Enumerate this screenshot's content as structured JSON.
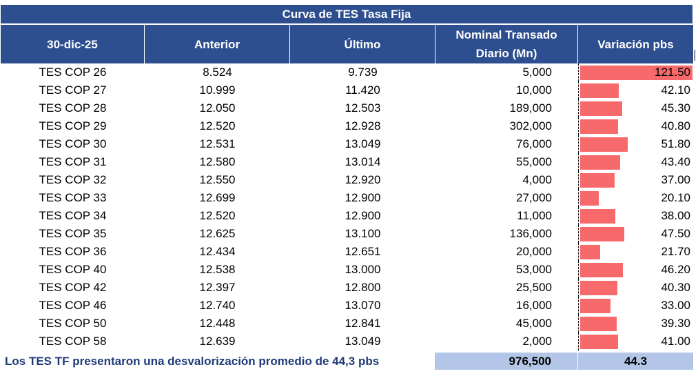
{
  "title": "Curva de TES Tasa Fija",
  "headers": {
    "date": "30-dic-25",
    "prev": "Anterior",
    "last": "Último",
    "nominal_line1": "Nominal Transado",
    "nominal_line2": "Diario (Mn)",
    "variation": "Variación pbs"
  },
  "rows": [
    {
      "name": "TES COP 26",
      "prev": "8.524",
      "last": "9.739",
      "nominal": "5,000",
      "var": "121.50",
      "var_value": 121.5
    },
    {
      "name": "TES COP 27",
      "prev": "10.999",
      "last": "11.420",
      "nominal": "10,000",
      "var": "42.10",
      "var_value": 42.1
    },
    {
      "name": "TES COP 28",
      "prev": "12.050",
      "last": "12.503",
      "nominal": "189,000",
      "var": "45.30",
      "var_value": 45.3
    },
    {
      "name": "TES COP 29",
      "prev": "12.520",
      "last": "12.928",
      "nominal": "302,000",
      "var": "40.80",
      "var_value": 40.8
    },
    {
      "name": "TES COP 30",
      "prev": "12.531",
      "last": "13.049",
      "nominal": "76,000",
      "var": "51.80",
      "var_value": 51.8
    },
    {
      "name": "TES COP 31",
      "prev": "12.580",
      "last": "13.014",
      "nominal": "55,000",
      "var": "43.40",
      "var_value": 43.4
    },
    {
      "name": "TES COP 32",
      "prev": "12.550",
      "last": "12.920",
      "nominal": "4,000",
      "var": "37.00",
      "var_value": 37.0
    },
    {
      "name": "TES COP 33",
      "prev": "12.699",
      "last": "12.900",
      "nominal": "27,000",
      "var": "20.10",
      "var_value": 20.1
    },
    {
      "name": "TES COP 34",
      "prev": "12.520",
      "last": "12.900",
      "nominal": "11,000",
      "var": "38.00",
      "var_value": 38.0
    },
    {
      "name": "TES COP 35",
      "prev": "12.625",
      "last": "13.100",
      "nominal": "136,000",
      "var": "47.50",
      "var_value": 47.5
    },
    {
      "name": "TES COP 36",
      "prev": "12.434",
      "last": "12.651",
      "nominal": "20,000",
      "var": "21.70",
      "var_value": 21.7
    },
    {
      "name": "TES COP 40",
      "prev": "12.538",
      "last": "13.000",
      "nominal": "53,000",
      "var": "46.20",
      "var_value": 46.2
    },
    {
      "name": "TES COP 42",
      "prev": "12.397",
      "last": "12.800",
      "nominal": "25,500",
      "var": "40.30",
      "var_value": 40.3
    },
    {
      "name": "TES COP 46",
      "prev": "12.740",
      "last": "13.070",
      "nominal": "16,000",
      "var": "33.00",
      "var_value": 33.0
    },
    {
      "name": "TES COP 50",
      "prev": "12.448",
      "last": "12.841",
      "nominal": "45,000",
      "var": "39.30",
      "var_value": 39.3
    },
    {
      "name": "TES COP 58",
      "prev": "12.639",
      "last": "13.049",
      "nominal": "2,000",
      "var": "41.00",
      "var_value": 41.0
    }
  ],
  "footer": {
    "text": "Los TES TF presentaron una desvalorización promedio de 44,3 pbs",
    "total_nominal": "976,500",
    "avg_variation": "44.3"
  },
  "colors": {
    "header_bg": "#2e4f8f",
    "bar": "#f8696b",
    "footer_bg": "#b4c6e7",
    "footer_text": "#1f3a78"
  }
}
